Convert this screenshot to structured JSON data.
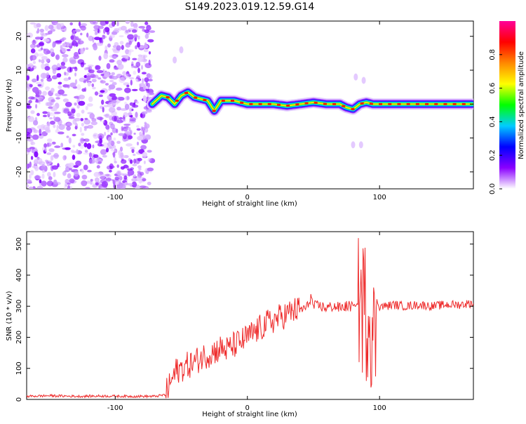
{
  "title": "S149.2023.019.12.59.G14",
  "chart_data": [
    {
      "type": "heatmap",
      "xlabel": "Height of straight line (km)",
      "ylabel": "Frequency (Hz)",
      "xlim": [
        -167,
        171
      ],
      "ylim": [
        -25,
        24.5
      ],
      "xticks": [
        -100,
        0,
        100
      ],
      "yticks": [
        -20,
        -10,
        0,
        10,
        20
      ],
      "noise_region": {
        "x": [
          -167,
          -72
        ]
      },
      "signal_trace": {
        "x": [
          -72,
          -65,
          -60,
          -55,
          -50,
          -45,
          -40,
          -35,
          -30,
          -25,
          -20,
          -15,
          -10,
          -5,
          0,
          10,
          20,
          30,
          40,
          50,
          60,
          70,
          75,
          80,
          85,
          90,
          95,
          100,
          110,
          120,
          130,
          140,
          150,
          160,
          170
        ],
        "y": [
          0,
          2.5,
          2,
          0,
          2.5,
          3.5,
          2,
          1.5,
          1,
          -2,
          1,
          1,
          1,
          0.5,
          0,
          0,
          0,
          -0.5,
          0,
          0.5,
          0,
          0,
          -1,
          -1.5,
          0,
          0.5,
          0,
          0,
          0,
          0,
          0,
          0,
          0,
          0,
          0
        ]
      },
      "colorbar": {
        "label": "Normalized spectral amplitude",
        "range": [
          0.0,
          1.0
        ],
        "ticks": [
          "0.0",
          "0.2",
          "0.4",
          "0.6",
          "0.8"
        ],
        "colors": [
          "#ffffff",
          "#8a00ff",
          "#0000ff",
          "#00ccff",
          "#00ff00",
          "#ffff00",
          "#ff8800",
          "#ff0000",
          "#ff0099"
        ]
      }
    },
    {
      "type": "line",
      "xlabel": "Height of straight line (km)",
      "ylabel": "SNR (10 * v/v)",
      "xlim": [
        -167,
        171
      ],
      "ylim": [
        0,
        540
      ],
      "xticks": [
        -100,
        0,
        100
      ],
      "yticks": [
        0,
        100,
        200,
        300,
        400,
        500
      ],
      "color": "#ee2b2b",
      "series": [
        {
          "x": [
            -167,
            -150,
            -130,
            -110,
            -90,
            -70,
            -62,
            -58,
            -54,
            -50,
            -45,
            -40,
            -35,
            -30,
            -25,
            -20,
            -15,
            -10,
            -5,
            0,
            5,
            10,
            15,
            20,
            25,
            30,
            35,
            40,
            45,
            48,
            50,
            55,
            60,
            65,
            70,
            75,
            80,
            85,
            88,
            90,
            92,
            94,
            96,
            98,
            100,
            105,
            110,
            120,
            130,
            140,
            150,
            160,
            171
          ],
          "values": [
            10,
            12,
            10,
            11,
            10,
            10,
            15,
            55,
            90,
            100,
            110,
            120,
            135,
            145,
            155,
            165,
            160,
            175,
            185,
            200,
            215,
            230,
            245,
            255,
            265,
            275,
            285,
            290,
            295,
            330,
            300,
            300,
            295,
            300,
            295,
            300,
            300,
            310,
            300,
            280,
            300,
            250,
            180,
            320,
            300,
            300,
            305,
            300,
            305,
            300,
            305,
            305,
            310
          ]
        }
      ]
    }
  ]
}
